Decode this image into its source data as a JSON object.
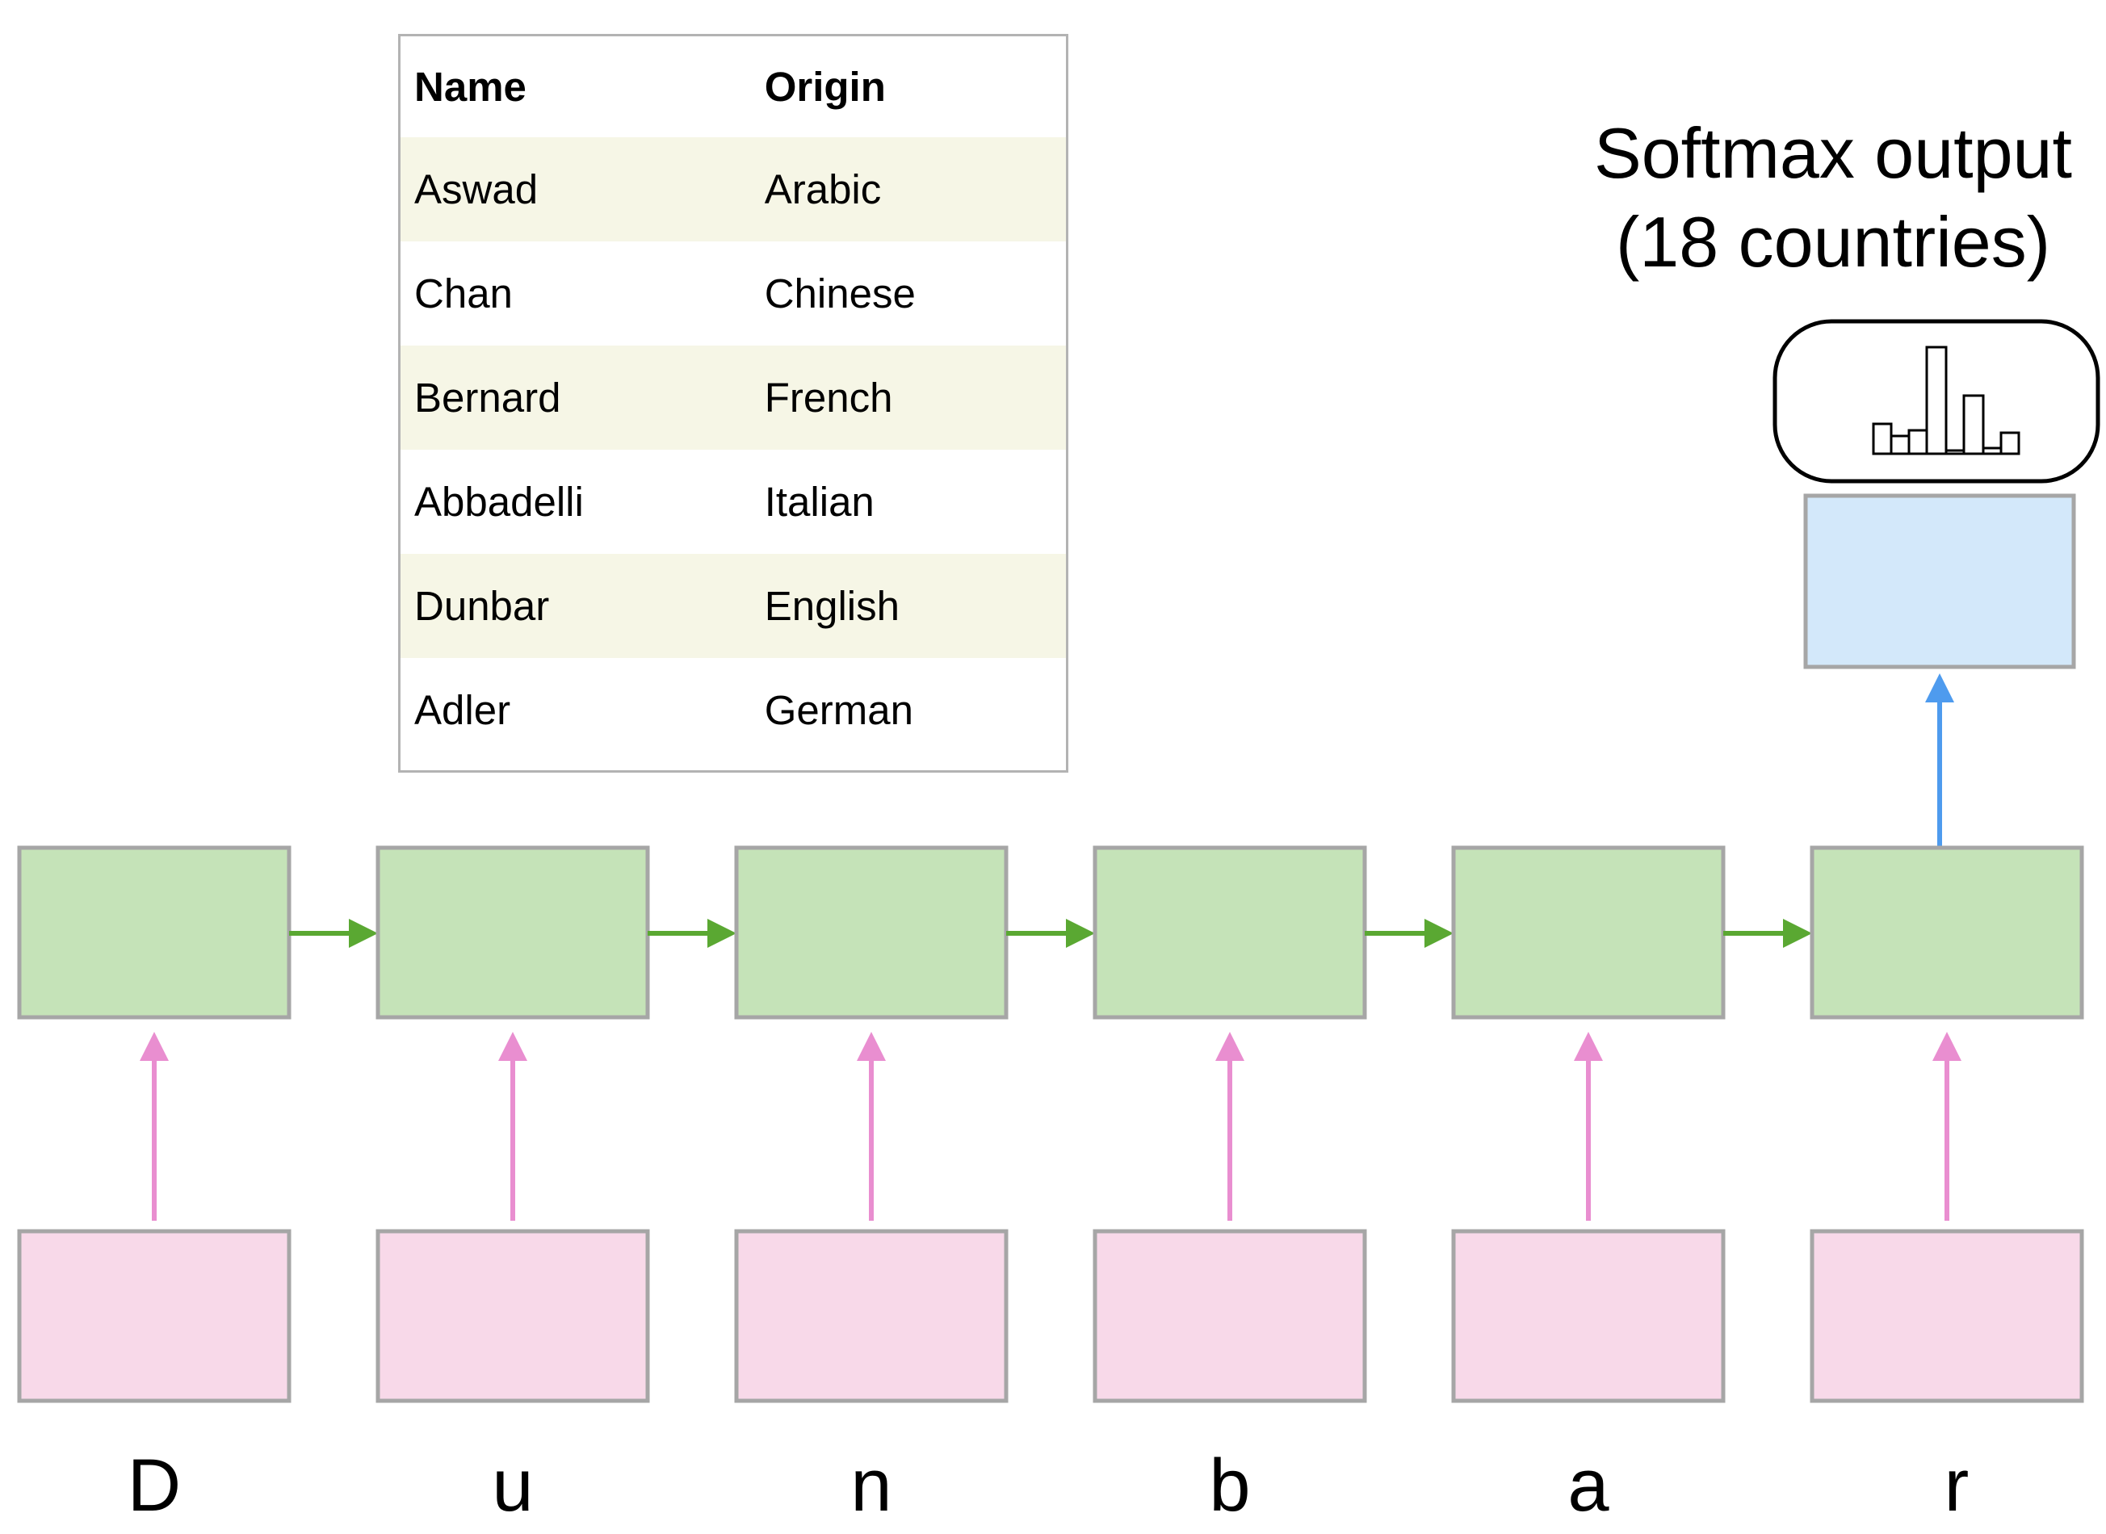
{
  "table": {
    "headers": [
      "Name",
      "Origin"
    ],
    "rows": [
      [
        "Aswad",
        "Arabic"
      ],
      [
        "Chan",
        "Chinese"
      ],
      [
        "Bernard",
        "French"
      ],
      [
        "Abbadelli",
        "Italian"
      ],
      [
        "Dunbar",
        "English"
      ],
      [
        "Adler",
        "German"
      ]
    ]
  },
  "softmax": {
    "title_line1": "Softmax output",
    "title_line2": "(18 countries)"
  },
  "characters": [
    "D",
    "u",
    "n",
    "b",
    "a",
    "r"
  ],
  "colors": {
    "rnn_cell": "#c5e3b8",
    "input_box": "#f8d9e9",
    "output_box": "#d3e8fa",
    "box_border": "#a6a6a6",
    "recurrent_arrow": "#5aa832",
    "input_arrow": "#e98ed0",
    "output_arrow": "#4e9bee"
  }
}
